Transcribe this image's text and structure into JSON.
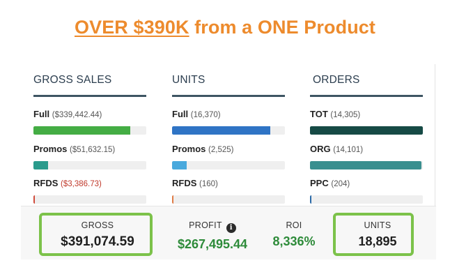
{
  "headline": {
    "underlined": "OVER $390K",
    "rest": " from a ONE Product"
  },
  "columns": [
    {
      "title": "GROSS SALES",
      "rows": [
        {
          "label": "Full",
          "detail": "($339,442.44)",
          "fill": 0.86,
          "color": "#44ad44"
        },
        {
          "label": "Promos",
          "detail": "($51,632.15)",
          "fill": 0.13,
          "color": "#2a9b8c"
        },
        {
          "label": "RFDS",
          "detail": "($3,386.73)",
          "fill": 0.01,
          "color": "#d04a3a",
          "negative": true
        }
      ]
    },
    {
      "title": "UNITS",
      "rows": [
        {
          "label": "Full",
          "detail": "(16,370)",
          "fill": 0.87,
          "color": "#2f74c5"
        },
        {
          "label": "Promos",
          "detail": "(2,525)",
          "fill": 0.13,
          "color": "#49a9dd"
        },
        {
          "label": "RFDS",
          "detail": "(160)",
          "fill": 0.01,
          "color": "#e07b45"
        }
      ]
    },
    {
      "title": "ORDERS",
      "rows": [
        {
          "label": "TOT",
          "detail": "(14,305)",
          "fill": 1.0,
          "color": "#164a45"
        },
        {
          "label": "ORG",
          "detail": "(14,101)",
          "fill": 0.99,
          "color": "#3a8f8f"
        },
        {
          "label": "PPC",
          "detail": "(204)",
          "fill": 0.01,
          "color": "#2a6aa8"
        }
      ]
    }
  ],
  "summary": {
    "gross": {
      "label": "GROSS",
      "value": "$391,074.59"
    },
    "profit": {
      "label": "PROFIT",
      "value": "$267,495.44",
      "icon": "info-icon"
    },
    "roi": {
      "label": "ROI",
      "value": "8,336%"
    },
    "units": {
      "label": "UNITS",
      "value": "18,895"
    }
  },
  "colors": {
    "headline": "#ed8b2d",
    "highlight": "#7cc24a",
    "positive": "#2e8b3a",
    "rule": "#3e5563"
  }
}
